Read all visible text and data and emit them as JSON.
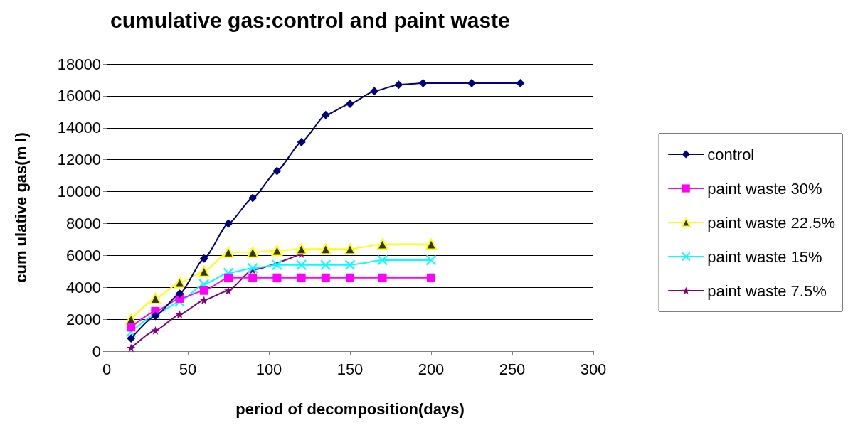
{
  "chart_data": {
    "type": "line",
    "title": "cumulative gas:control and paint waste",
    "xlabel": "period of decomposition(days)",
    "ylabel": "cum ulative gas(m l)",
    "xlim": [
      0,
      300
    ],
    "xticks": [
      0,
      50,
      100,
      150,
      200,
      250,
      300
    ],
    "ylim": [
      0,
      18000
    ],
    "yticks": [
      0,
      2000,
      4000,
      6000,
      8000,
      10000,
      12000,
      14000,
      16000,
      18000
    ],
    "grid": "y",
    "legend": "right",
    "series": [
      {
        "name": "control",
        "color": "#000080",
        "marker": "diamond",
        "x": [
          15,
          30,
          45,
          60,
          75,
          90,
          105,
          120,
          135,
          150,
          165,
          180,
          195,
          225,
          255
        ],
        "values": [
          800,
          2200,
          3600,
          5800,
          8000,
          9600,
          11300,
          13100,
          14800,
          15500,
          16300,
          16700,
          16800,
          16800,
          16800
        ]
      },
      {
        "name": "paint waste 30%",
        "color": "#ff00ff",
        "marker": "square",
        "x": [
          15,
          30,
          45,
          60,
          75,
          90,
          105,
          120,
          135,
          150,
          170,
          200
        ],
        "values": [
          1500,
          2500,
          3300,
          3800,
          4600,
          4600,
          4600,
          4600,
          4600,
          4600,
          4600,
          4600
        ]
      },
      {
        "name": "paint waste 22.5%",
        "color": "#ffff00",
        "marker": "triangle",
        "x": [
          15,
          30,
          45,
          60,
          75,
          90,
          105,
          120,
          135,
          150,
          170,
          200
        ],
        "values": [
          2000,
          3300,
          4300,
          5000,
          6200,
          6200,
          6300,
          6400,
          6400,
          6400,
          6700,
          6700
        ]
      },
      {
        "name": "paint waste 15%",
        "color": "#00ffff",
        "marker": "cross",
        "x": [
          15,
          30,
          45,
          60,
          75,
          90,
          105,
          120,
          135,
          150,
          170,
          200
        ],
        "values": [
          1200,
          2300,
          3100,
          4200,
          4900,
          5200,
          5400,
          5400,
          5400,
          5400,
          5700,
          5700
        ]
      },
      {
        "name": "paint waste 7.5%",
        "color": "#800080",
        "marker": "star",
        "x": [
          15,
          30,
          45,
          60,
          75,
          90,
          120
        ],
        "values": [
          200,
          1300,
          2300,
          3200,
          3800,
          5100,
          6100
        ]
      }
    ]
  }
}
